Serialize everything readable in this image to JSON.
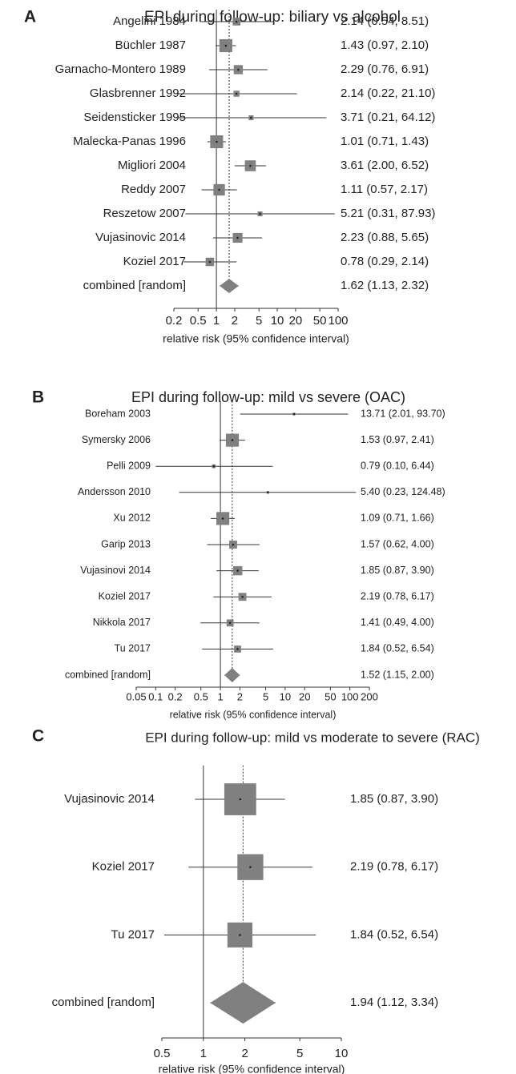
{
  "chart_data": [
    {
      "type": "forest",
      "panel_label": "A",
      "title": "EPI during follow-up: biliary vs alcohol",
      "categories": [
        "Angelini 1984",
        "Büchler 1987",
        "Garnacho-Montero 1989",
        "Glasbrenner 1992",
        "Seidensticker 1995",
        "Malecka-Panas 1996",
        "Migliori 2004",
        "Reddy 2007",
        "Reszetow 2007",
        "Vujasinovic 2014",
        "Koziel 2017"
      ],
      "values": [
        2.14,
        1.43,
        2.29,
        2.14,
        3.71,
        1.01,
        3.61,
        1.11,
        5.21,
        2.23,
        0.78
      ],
      "lower": [
        0.54,
        0.97,
        0.76,
        0.22,
        0.21,
        0.71,
        2.0,
        0.57,
        0.31,
        0.88,
        0.29
      ],
      "upper": [
        8.51,
        2.1,
        6.91,
        21.1,
        64.12,
        1.43,
        6.52,
        2.17,
        87.93,
        5.65,
        2.14
      ],
      "weights": [
        5,
        14,
        7,
        3,
        2,
        14,
        10,
        11,
        2,
        8,
        6
      ],
      "value_labels": [
        "2.14 (0.54, 8.51)",
        "1.43 (0.97, 2.10)",
        "2.29 (0.76, 6.91)",
        "2.14 (0.22, 21.10)",
        "3.71 (0.21, 64.12)",
        "1.01 (0.71, 1.43)",
        "3.61 (2.00, 6.52)",
        "1.11 (0.57, 2.17)",
        "5.21 (0.31, 87.93)",
        "2.23 (0.88, 5.65)",
        "0.78 (0.29, 2.14)"
      ],
      "pooled": {
        "label": "combined [random]",
        "value": 1.62,
        "lower": 1.13,
        "upper": 2.32,
        "value_label": "1.62 (1.13, 2.32)"
      },
      "xlabel": "relative risk (95% confidence interval)",
      "log_x": true,
      "null_line": 1,
      "xlim": [
        0.2,
        100
      ],
      "xticks": [
        0.2,
        0.5,
        1,
        2,
        5,
        10,
        20,
        50,
        100
      ],
      "color": "#808080"
    },
    {
      "type": "forest",
      "panel_label": "B",
      "title": "EPI during follow-up: mild vs severe (OAC)",
      "categories": [
        "Boreham 2003",
        "Symersky 2006",
        "Pelli 2009",
        "Andersson 2010",
        "Xu 2012",
        "Garip 2013",
        "Vujasinovi 2014",
        "Koziel 2017",
        "Nikkola 2017",
        "Tu 2017"
      ],
      "values": [
        13.71,
        1.53,
        0.79,
        5.4,
        1.09,
        1.57,
        1.85,
        2.19,
        1.41,
        1.84
      ],
      "lower": [
        2.01,
        0.97,
        0.1,
        0.23,
        0.71,
        0.62,
        0.87,
        0.78,
        0.49,
        0.52
      ],
      "upper": [
        93.7,
        2.41,
        6.44,
        124.48,
        1.66,
        4.0,
        3.9,
        6.17,
        4.0,
        6.54
      ],
      "weights": [
        1,
        24,
        2,
        1,
        24,
        9,
        12,
        9,
        7,
        7
      ],
      "value_labels": [
        "13.71 (2.01, 93.70)",
        "1.53 (0.97, 2.41)",
        "0.79 (0.10, 6.44)",
        "5.40 (0.23, 124.48)",
        "1.09 (0.71, 1.66)",
        "1.57 (0.62, 4.00)",
        "1.85 (0.87, 3.90)",
        "2.19 (0.78, 6.17)",
        "1.41 (0.49, 4.00)",
        "1.84 (0.52, 6.54)"
      ],
      "pooled": {
        "label": "combined [random]",
        "value": 1.52,
        "lower": 1.15,
        "upper": 2.0,
        "value_label": "1.52 (1.15, 2.00)"
      },
      "xlabel": "relative risk (95% confidence interval)",
      "log_x": true,
      "null_line": 1,
      "xlim": [
        0.05,
        200
      ],
      "xticks": [
        0.05,
        0.1,
        0.2,
        0.5,
        1,
        2,
        5,
        10,
        20,
        50,
        100,
        200
      ],
      "color": "#808080"
    },
    {
      "type": "forest",
      "panel_label": "C",
      "title": "EPI during follow-up: mild vs moderate to severe (RAC)",
      "categories": [
        "Vujasinovic 2014",
        "Koziel 2017",
        "Tu 2017"
      ],
      "values": [
        1.85,
        2.19,
        1.84
      ],
      "lower": [
        0.87,
        0.78,
        0.52
      ],
      "upper": [
        3.9,
        6.17,
        6.54
      ],
      "weights": [
        44,
        29,
        27
      ],
      "value_labels": [
        "1.85 (0.87, 3.90)",
        "2.19 (0.78, 6.17)",
        "1.84 (0.52, 6.54)"
      ],
      "pooled": {
        "label": "combined [random]",
        "value": 1.94,
        "lower": 1.12,
        "upper": 3.34,
        "value_label": "1.94 (1.12, 3.34)"
      },
      "xlabel": "relative risk (95% confidence interval)",
      "log_x": true,
      "null_line": 1,
      "xlim": [
        0.5,
        10
      ],
      "xticks": [
        0.5,
        1,
        2,
        5,
        10
      ],
      "color": "#808080"
    }
  ]
}
